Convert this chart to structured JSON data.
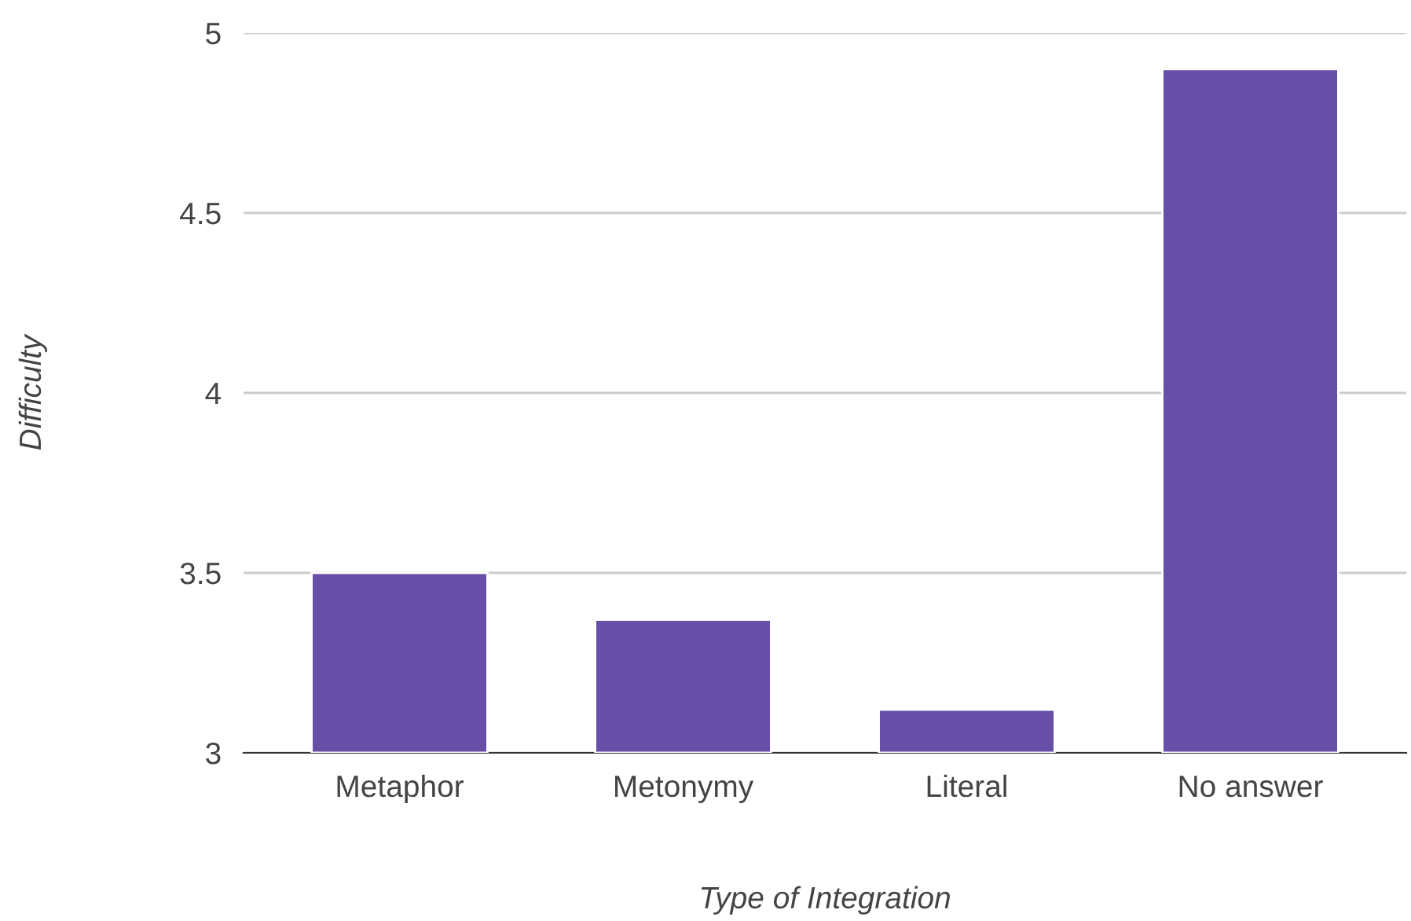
{
  "chart_data": {
    "type": "bar",
    "xlabel": "Type of Integration",
    "ylabel": "Difficulty",
    "categories": [
      "Metaphor",
      "Metonymy",
      "Literal",
      "No answer"
    ],
    "values": [
      3.5,
      3.37,
      3.12,
      4.9
    ],
    "color": "#674ea7",
    "ylim": [
      3,
      5
    ],
    "yticks": [
      3,
      3.5,
      4,
      4.5,
      5
    ],
    "grid": "y"
  }
}
